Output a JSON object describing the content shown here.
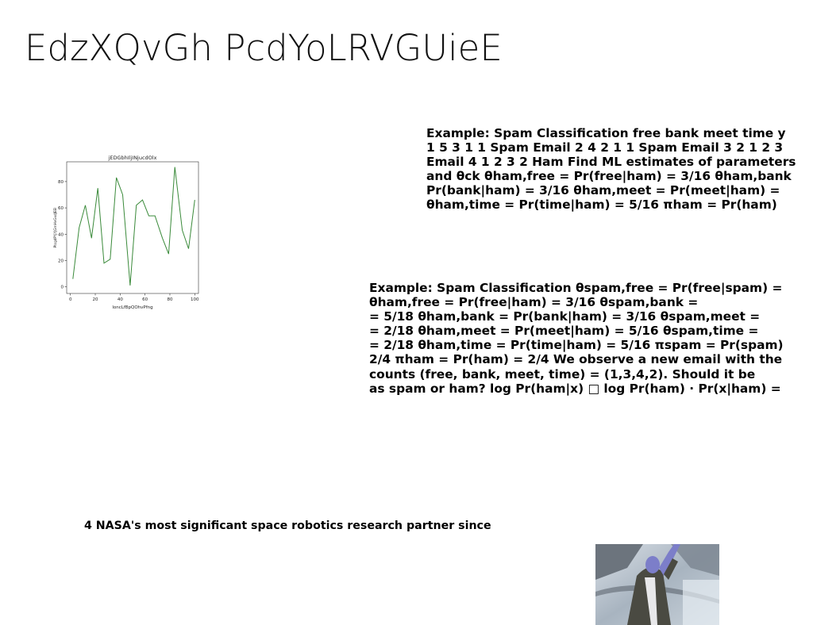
{
  "title": "EdzXQvGh PcdYoLRVGUieE",
  "block1": {
    "lines": [
      "Example: Spam Classification free bank meet time y",
      "1 5 3 1 1 Spam Email 2 4 2 1 1 Spam Email 3 2 1 2 3",
      "Email 4 1 2 3 2 Ham Find ML estimates of parameters",
      "and θck θham,free = Pr(free|ham) = 3/16 θham,bank",
      "Pr(bank|ham) = 3/16 θham,meet = Pr(meet|ham) =",
      "θham,time = Pr(time|ham) = 5/16 πham = Pr(ham)"
    ]
  },
  "block2": {
    "lines": [
      "Example: Spam Classification θspam,free = Pr(free|spam) =",
      "θham,free = Pr(free|ham) = 3/16 θspam,bank =",
      "= 5/18 θham,bank = Pr(bank|ham) = 3/16 θspam,meet =",
      "= 2/18 θham,meet = Pr(meet|ham) = 5/16 θspam,time =",
      "= 2/18 θham,time = Pr(time|ham) = 5/16 πspam = Pr(spam)",
      "2/4 πham = Pr(ham) = 2/4 We observe a new email with the",
      "counts (free, bank, meet, time) = (1,3,4,2). Should it be",
      "as spam or ham? log Pr(ham|x) □ log Pr(ham) · Pr(x|ham) ="
    ]
  },
  "caption": "4 NASA's most significant space robotics research partner since",
  "chart_data": {
    "type": "line",
    "title": "jEDGbhIljINjucdOlx",
    "xlabel": "loncLfBpQOhvPfng",
    "ylabel": "PtcgdPYjYjGmHvGxdJEEI",
    "xlim": [
      -3,
      103
    ],
    "ylim": [
      -5,
      95
    ],
    "xticks": [
      0,
      20,
      40,
      60,
      80,
      100
    ],
    "yticks": [
      0,
      20,
      40,
      60,
      80
    ],
    "color": "#3a8a3a",
    "x": [
      2,
      7,
      12,
      17,
      22,
      27,
      32,
      37,
      42,
      48,
      53,
      58,
      63,
      68,
      74,
      79,
      84,
      90,
      95,
      100
    ],
    "y": [
      6,
      45,
      62,
      37,
      75,
      18,
      21,
      83,
      70,
      1,
      62,
      66,
      54,
      54,
      37,
      25,
      91,
      43,
      29,
      66
    ]
  },
  "photo": {
    "colors": {
      "background": "#b9c4cf",
      "coat": "#4a4a42",
      "skin": "#7c7ec9",
      "shirt": "#e8e8ea",
      "structure": "#5e6670"
    }
  }
}
